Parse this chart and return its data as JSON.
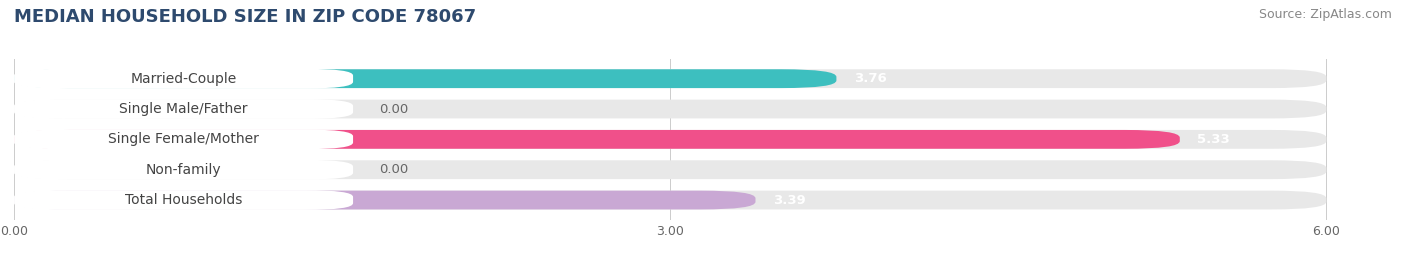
{
  "title": "MEDIAN HOUSEHOLD SIZE IN ZIP CODE 78067",
  "source": "Source: ZipAtlas.com",
  "categories": [
    "Married-Couple",
    "Single Male/Father",
    "Single Female/Mother",
    "Non-family",
    "Total Households"
  ],
  "values": [
    3.76,
    0.0,
    5.33,
    0.0,
    3.39
  ],
  "bar_colors": [
    "#3dbfbf",
    "#a8bce8",
    "#f0508a",
    "#f5c89a",
    "#c9a8d4"
  ],
  "bar_bg_color": "#e8e8e8",
  "xlim": [
    0,
    6.3
  ],
  "xticks": [
    0.0,
    3.0,
    6.0
  ],
  "xtick_labels": [
    "0.00",
    "3.00",
    "6.00"
  ],
  "value_label_color_nonzero": "#ffffff",
  "value_label_color_zero": "#666666",
  "title_color": "#2e4a6e",
  "title_fontsize": 13,
  "source_fontsize": 9,
  "bar_height": 0.62,
  "background_color": "#ffffff",
  "label_fontsize": 10,
  "label_text_color": "#444444"
}
